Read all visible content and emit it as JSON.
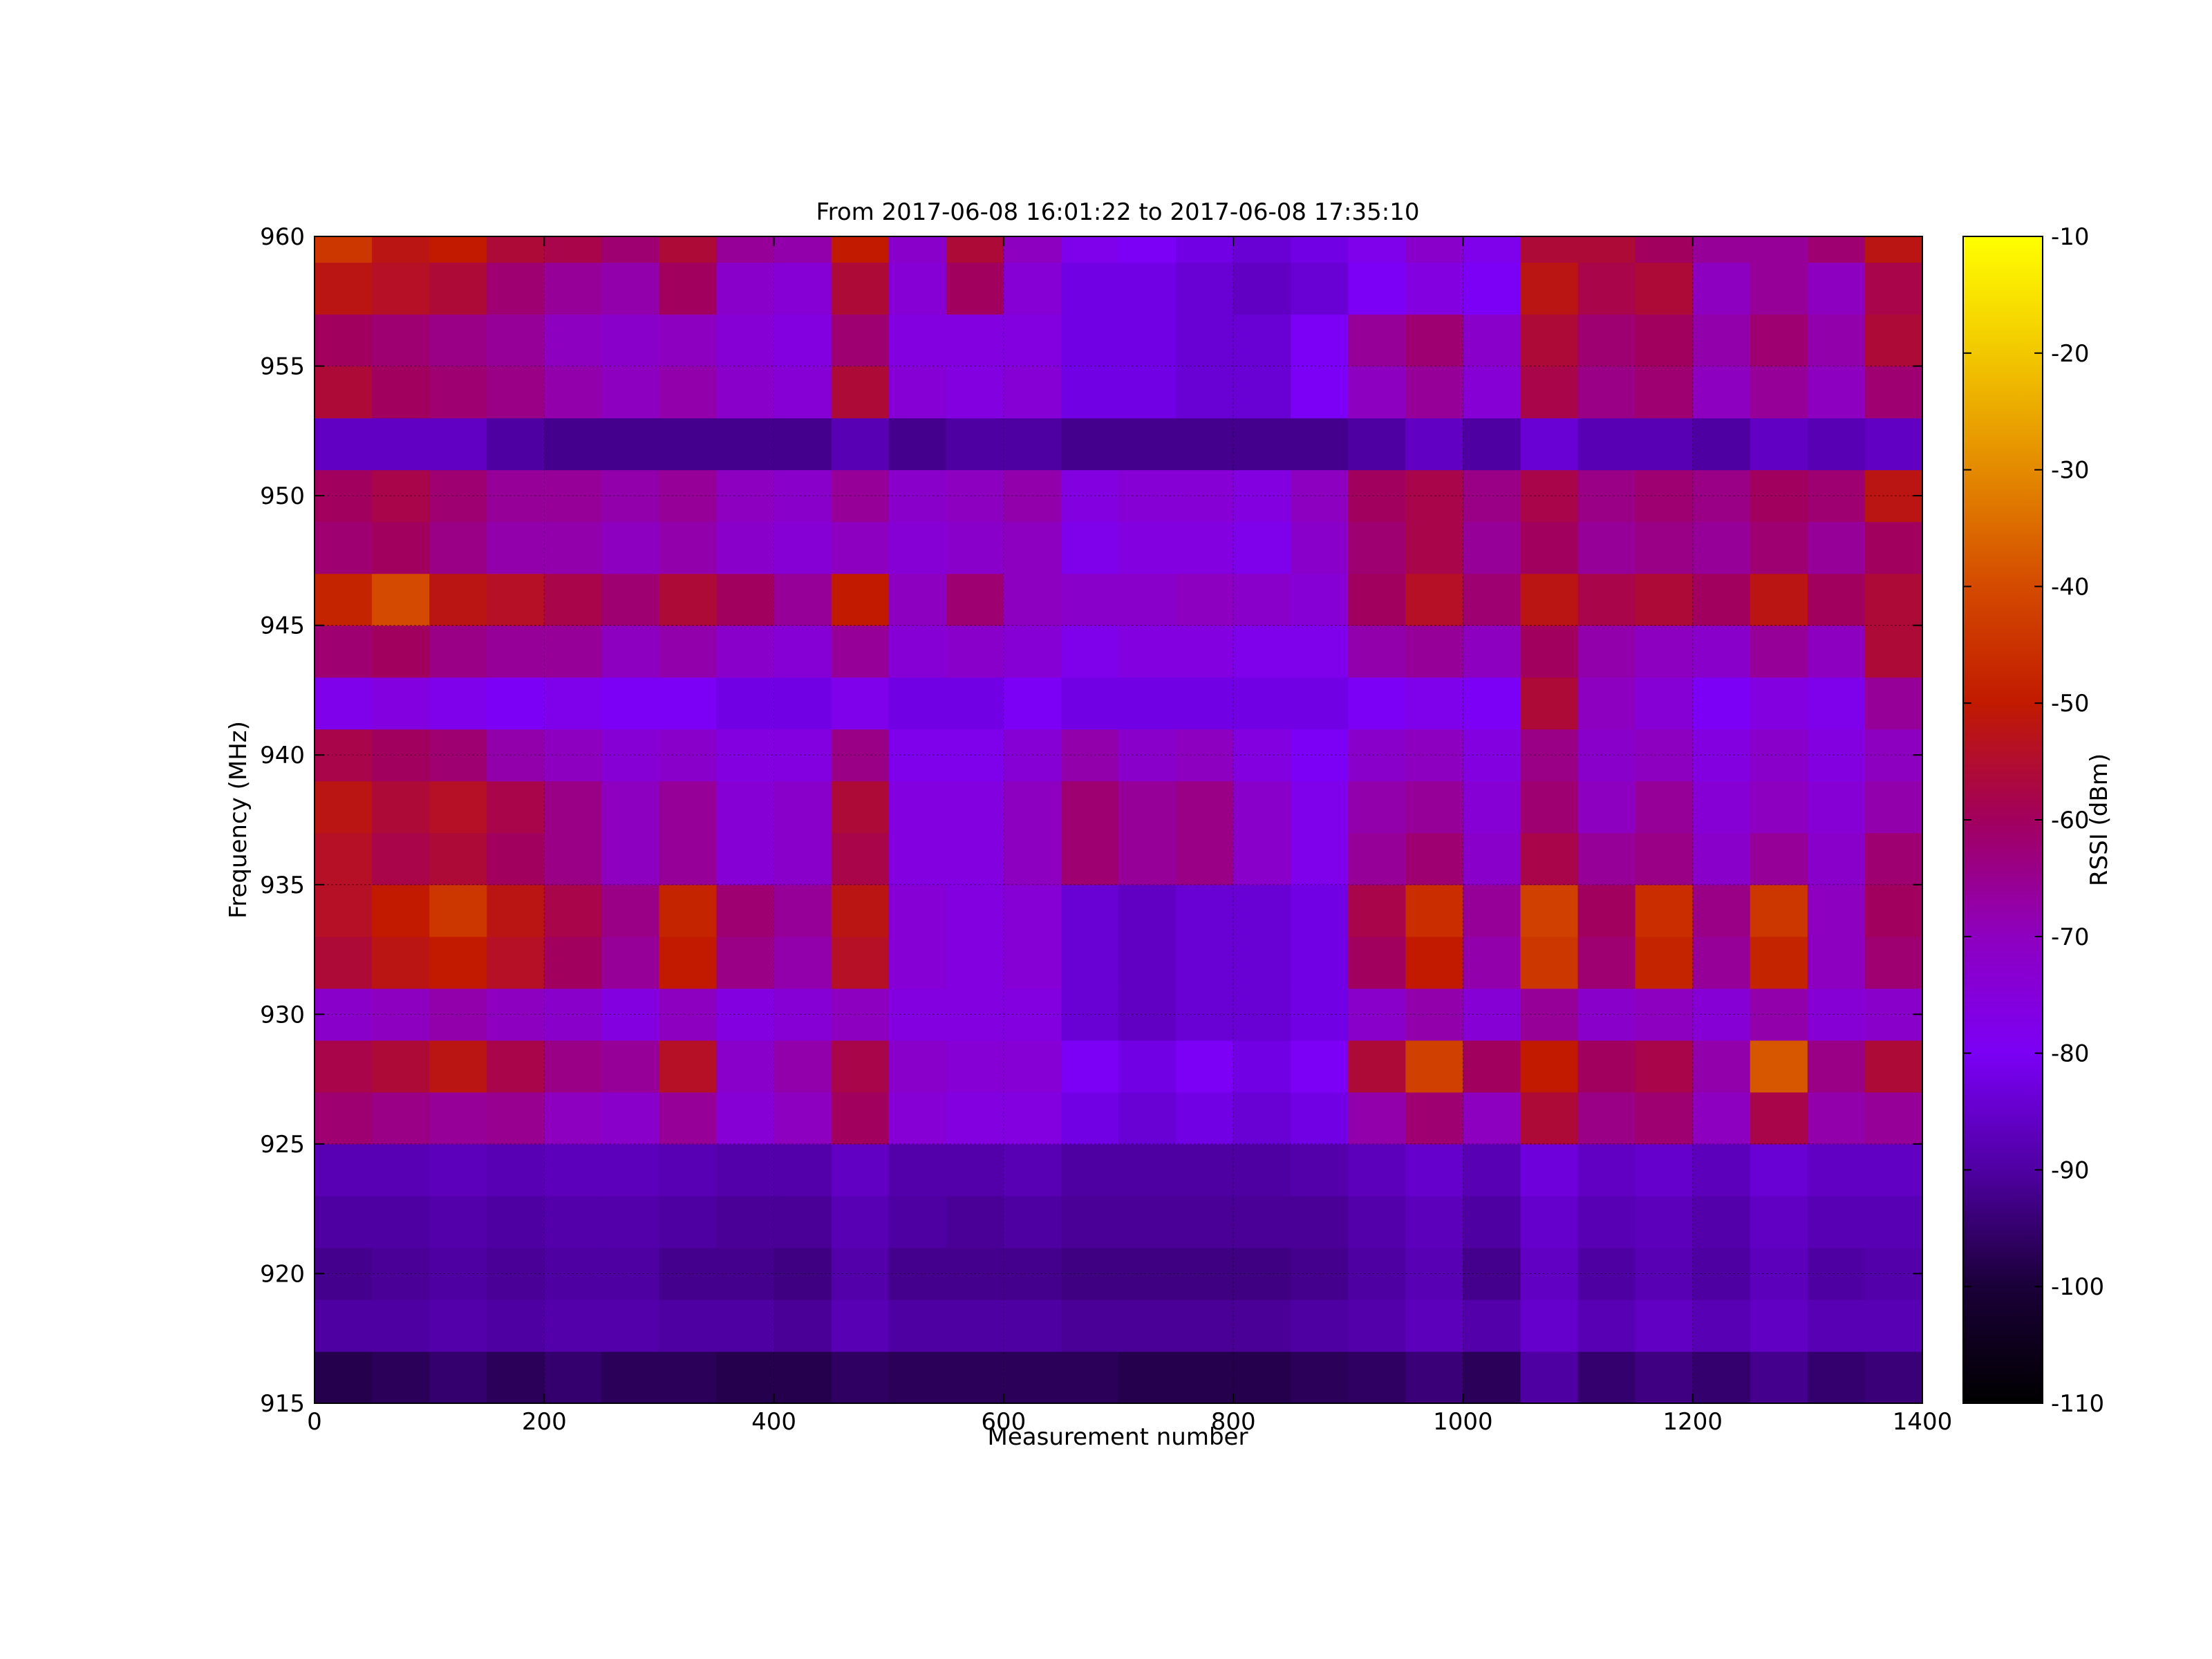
{
  "chart_data": {
    "type": "heatmap",
    "title": "From 2017-06-08 16:01:22 to 2017-06-08 17:35:10",
    "xlabel": "Measurement number",
    "ylabel": "Frequency (MHz)",
    "colorbar_label": "RSSI (dBm)",
    "xlim": [
      0,
      1400
    ],
    "ylim": [
      915,
      960
    ],
    "clim": [
      -110,
      -10
    ],
    "x_ticks": [
      0,
      200,
      400,
      600,
      800,
      1000,
      1200,
      1400
    ],
    "y_ticks": [
      915,
      920,
      925,
      930,
      935,
      940,
      945,
      950,
      955,
      960
    ],
    "colorbar_ticks": [
      -110,
      -100,
      -90,
      -80,
      -70,
      -60,
      -50,
      -40,
      -30,
      -20,
      -10
    ],
    "colormap": "gnuplot",
    "grid": true,
    "x_bins": [
      0,
      50,
      100,
      150,
      200,
      250,
      300,
      350,
      400,
      450,
      500,
      550,
      600,
      650,
      700,
      750,
      800,
      850,
      900,
      950,
      1000,
      1050,
      1100,
      1150,
      1200,
      1250,
      1300,
      1350
    ],
    "y_bins": [
      915,
      917,
      919,
      921,
      923,
      925,
      927,
      929,
      931,
      933,
      935,
      937,
      939,
      941,
      943,
      945,
      947,
      949,
      951,
      953,
      955,
      957,
      959
    ],
    "rssi_dbm": [
      [
        -98,
        -97,
        -95,
        -97,
        -95,
        -97,
        -97,
        -98,
        -98,
        -96,
        -97,
        -97,
        -97,
        -97,
        -98,
        -98,
        -98,
        -97,
        -96,
        -94,
        -97,
        -90,
        -95,
        -93,
        -95,
        -92,
        -95,
        -94
      ],
      [
        -90,
        -90,
        -89,
        -90,
        -89,
        -89,
        -90,
        -90,
        -91,
        -88,
        -90,
        -90,
        -90,
        -91,
        -91,
        -91,
        -91,
        -90,
        -89,
        -87,
        -89,
        -85,
        -88,
        -86,
        -88,
        -86,
        -88,
        -88
      ],
      [
        -92,
        -91,
        -90,
        -91,
        -90,
        -90,
        -92,
        -92,
        -93,
        -89,
        -92,
        -92,
        -92,
        -93,
        -93,
        -93,
        -93,
        -92,
        -90,
        -88,
        -92,
        -86,
        -90,
        -88,
        -90,
        -87,
        -90,
        -89
      ],
      [
        -90,
        -90,
        -89,
        -90,
        -89,
        -89,
        -90,
        -91,
        -91,
        -88,
        -90,
        -91,
        -90,
        -91,
        -91,
        -91,
        -91,
        -91,
        -89,
        -87,
        -90,
        -85,
        -88,
        -87,
        -89,
        -86,
        -88,
        -88
      ],
      [
        -88,
        -88,
        -87,
        -88,
        -87,
        -87,
        -88,
        -89,
        -89,
        -86,
        -89,
        -89,
        -88,
        -90,
        -90,
        -90,
        -90,
        -89,
        -87,
        -85,
        -88,
        -83,
        -86,
        -85,
        -87,
        -84,
        -86,
        -86
      ],
      [
        -62,
        -64,
        -66,
        -65,
        -70,
        -72,
        -66,
        -74,
        -70,
        -60,
        -74,
        -76,
        -76,
        -82,
        -84,
        -82,
        -84,
        -82,
        -68,
        -62,
        -70,
        -56,
        -64,
        -62,
        -70,
        -58,
        -68,
        -66
      ],
      [
        -58,
        -56,
        -52,
        -58,
        -64,
        -66,
        -54,
        -72,
        -68,
        -58,
        -72,
        -74,
        -74,
        -80,
        -82,
        -80,
        -82,
        -80,
        -56,
        -42,
        -60,
        -50,
        -60,
        -58,
        -68,
        -38,
        -64,
        -56
      ],
      [
        -72,
        -70,
        -68,
        -70,
        -72,
        -76,
        -70,
        -76,
        -74,
        -70,
        -76,
        -76,
        -76,
        -84,
        -86,
        -84,
        -84,
        -82,
        -72,
        -68,
        -74,
        -66,
        -72,
        -70,
        -74,
        -68,
        -74,
        -72
      ],
      [
        -56,
        -52,
        -50,
        -54,
        -60,
        -66,
        -50,
        -64,
        -68,
        -54,
        -74,
        -76,
        -74,
        -84,
        -86,
        -84,
        -84,
        -82,
        -60,
        -50,
        -68,
        -44,
        -62,
        -48,
        -66,
        -48,
        -70,
        -62
      ],
      [
        -54,
        -50,
        -44,
        -52,
        -58,
        -64,
        -48,
        -62,
        -66,
        -52,
        -74,
        -76,
        -74,
        -84,
        -86,
        -84,
        -84,
        -82,
        -58,
        -46,
        -66,
        -42,
        -60,
        -46,
        -64,
        -44,
        -70,
        -60
      ],
      [
        -54,
        -58,
        -56,
        -60,
        -64,
        -70,
        -66,
        -74,
        -72,
        -58,
        -76,
        -76,
        -70,
        -62,
        -66,
        -64,
        -72,
        -78,
        -66,
        -62,
        -72,
        -58,
        -66,
        -64,
        -72,
        -66,
        -72,
        -62
      ],
      [
        -52,
        -56,
        -54,
        -58,
        -64,
        -70,
        -66,
        -74,
        -72,
        -56,
        -76,
        -76,
        -70,
        -62,
        -66,
        -64,
        -72,
        -78,
        -68,
        -66,
        -74,
        -62,
        -70,
        -66,
        -74,
        -70,
        -74,
        -68
      ],
      [
        -58,
        -60,
        -62,
        -68,
        -70,
        -74,
        -72,
        -76,
        -76,
        -64,
        -78,
        -78,
        -74,
        -68,
        -72,
        -70,
        -76,
        -80,
        -72,
        -70,
        -76,
        -64,
        -72,
        -70,
        -76,
        -72,
        -76,
        -70
      ],
      [
        -78,
        -76,
        -78,
        -80,
        -78,
        -80,
        -80,
        -82,
        -82,
        -78,
        -82,
        -82,
        -80,
        -82,
        -82,
        -82,
        -82,
        -82,
        -80,
        -78,
        -80,
        -56,
        -70,
        -74,
        -80,
        -76,
        -78,
        -66
      ],
      [
        -62,
        -60,
        -64,
        -66,
        -66,
        -70,
        -68,
        -72,
        -74,
        -66,
        -74,
        -72,
        -74,
        -78,
        -76,
        -76,
        -78,
        -78,
        -68,
        -66,
        -70,
        -60,
        -68,
        -70,
        -72,
        -66,
        -70,
        -56
      ],
      [
        -48,
        -40,
        -52,
        -54,
        -58,
        -62,
        -56,
        -60,
        -66,
        -50,
        -70,
        -62,
        -70,
        -72,
        -72,
        -70,
        -72,
        -74,
        -60,
        -54,
        -62,
        -52,
        -58,
        -56,
        -60,
        -52,
        -60,
        -56
      ],
      [
        -62,
        -60,
        -64,
        -68,
        -68,
        -70,
        -68,
        -72,
        -74,
        -70,
        -74,
        -72,
        -70,
        -78,
        -76,
        -76,
        -78,
        -72,
        -62,
        -58,
        -66,
        -60,
        -66,
        -64,
        -66,
        -62,
        -66,
        -60
      ],
      [
        -60,
        -58,
        -62,
        -66,
        -66,
        -68,
        -66,
        -70,
        -72,
        -66,
        -72,
        -70,
        -68,
        -76,
        -74,
        -74,
        -76,
        -70,
        -60,
        -58,
        -64,
        -58,
        -64,
        -62,
        -64,
        -60,
        -62,
        -52
      ],
      [
        -86,
        -86,
        -86,
        -90,
        -92,
        -92,
        -92,
        -92,
        -92,
        -88,
        -92,
        -90,
        -90,
        -92,
        -92,
        -92,
        -92,
        -92,
        -90,
        -86,
        -90,
        -84,
        -88,
        -88,
        -90,
        -86,
        -88,
        -86
      ],
      [
        -56,
        -60,
        -62,
        -64,
        -68,
        -70,
        -68,
        -72,
        -74,
        -56,
        -74,
        -76,
        -74,
        -82,
        -82,
        -84,
        -84,
        -80,
        -70,
        -66,
        -74,
        -58,
        -64,
        -62,
        -70,
        -66,
        -70,
        -62
      ],
      [
        -60,
        -62,
        -64,
        -66,
        -70,
        -72,
        -70,
        -74,
        -76,
        -62,
        -76,
        -76,
        -76,
        -82,
        -82,
        -84,
        -84,
        -80,
        -66,
        -62,
        -72,
        -56,
        -62,
        -60,
        -68,
        -62,
        -68,
        -56
      ],
      [
        -52,
        -54,
        -56,
        -62,
        -66,
        -68,
        -60,
        -72,
        -74,
        -56,
        -74,
        -60,
        -74,
        -82,
        -82,
        -84,
        -86,
        -84,
        -80,
        -76,
        -80,
        -52,
        -58,
        -56,
        -70,
        -66,
        -70,
        -58
      ],
      [
        -44,
        -52,
        -50,
        -56,
        -58,
        -62,
        -56,
        -66,
        -68,
        -50,
        -72,
        -56,
        -70,
        -78,
        -80,
        -82,
        -84,
        -82,
        -78,
        -72,
        -78,
        -56,
        -56,
        -60,
        -66,
        -66,
        -62,
        -52
      ]
    ]
  }
}
